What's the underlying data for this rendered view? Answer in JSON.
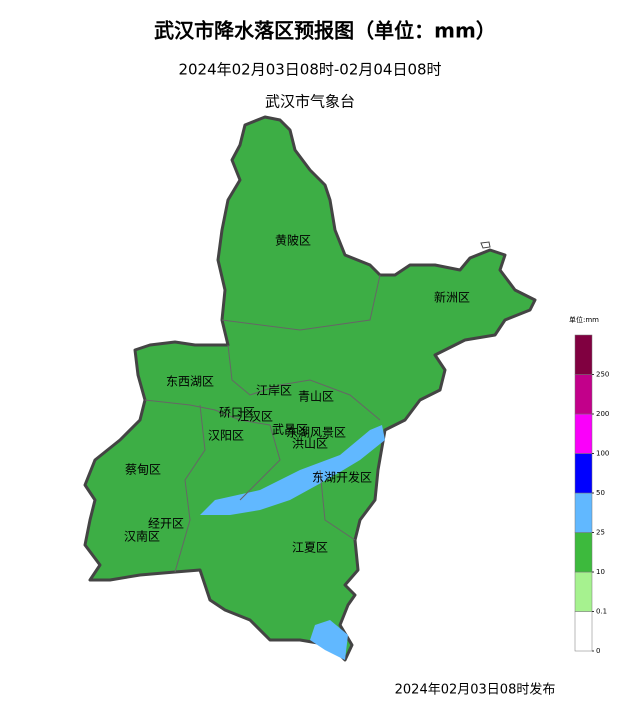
{
  "title": "武汉市降水落区预报图（单位：mm）",
  "subtitle": "2024年02月03日08时-02月04日08时",
  "issuer": "武汉市气象台",
  "footer": "2024年02月03日08时发布",
  "districts": [
    {
      "label": "黄陂区"
    },
    {
      "label": "新洲区"
    },
    {
      "label": "东西湖区"
    },
    {
      "label": "江岸区"
    },
    {
      "label": "青山区"
    },
    {
      "label": "硚口区"
    },
    {
      "label": "江汉区"
    },
    {
      "label": "汉阳区"
    },
    {
      "label": "武昌区"
    },
    {
      "label": "东湖风景区"
    },
    {
      "label": "洪山区"
    },
    {
      "label": "蔡甸区"
    },
    {
      "label": "东湖开发区"
    },
    {
      "label": "经开区"
    },
    {
      "label": "汉南区"
    },
    {
      "label": "江夏区"
    }
  ],
  "legend": {
    "title": "单位:mm",
    "ticks": [
      0,
      0.1,
      10,
      25,
      50,
      100,
      200,
      250
    ],
    "colors": [
      "#ffffff",
      "#a6f28f",
      "#3dba3d",
      "#61b8ff",
      "#0000ff",
      "#fa00fa",
      "#c2008a",
      "#800040"
    ]
  }
}
